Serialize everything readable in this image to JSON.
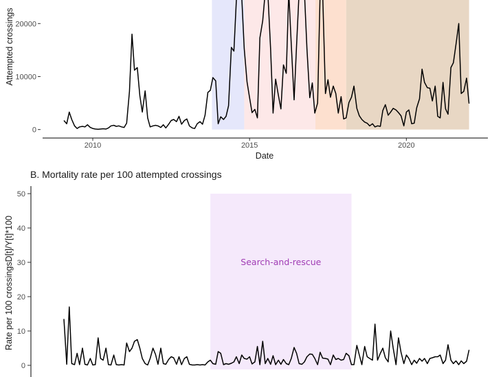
{
  "chart_data": [
    {
      "type": "line",
      "title": "",
      "xlabel": "Date",
      "ylabel": "Attempted crossings",
      "xlim": [
        2008.4,
        2022.6
      ],
      "ylim": [
        -1600,
        26000
      ],
      "x_ticks": [
        2010,
        2015,
        2020
      ],
      "x_tick_labels": [
        "2010",
        "2015",
        "2020"
      ],
      "y_ticks": [
        0,
        10000,
        20000
      ],
      "y_tick_labels": [
        "0",
        "10000",
        "20000"
      ],
      "grid": false,
      "bands": [
        {
          "from": 2013.8,
          "to": 2014.83,
          "color": "#e5e7fb"
        },
        {
          "from": 2014.83,
          "to": 2017.1,
          "color": "#fde8e8"
        },
        {
          "from": 2017.1,
          "to": 2018.08,
          "color": "#fde0cf"
        },
        {
          "from": 2018.08,
          "to": 2022.0,
          "color": "#e8d7c4"
        }
      ],
      "series": [
        {
          "name": "",
          "color": "#000000",
          "x": [
            2009.08,
            2009.17,
            2009.25,
            2009.33,
            2009.42,
            2009.5,
            2009.58,
            2009.67,
            2009.75,
            2009.83,
            2009.92,
            2010.0,
            2010.08,
            2010.17,
            2010.25,
            2010.33,
            2010.42,
            2010.5,
            2010.58,
            2010.67,
            2010.75,
            2010.83,
            2010.92,
            2011.0,
            2011.08,
            2011.17,
            2011.25,
            2011.33,
            2011.42,
            2011.5,
            2011.58,
            2011.67,
            2011.75,
            2011.83,
            2011.92,
            2012.0,
            2012.08,
            2012.17,
            2012.25,
            2012.33,
            2012.42,
            2012.5,
            2012.58,
            2012.67,
            2012.75,
            2012.83,
            2012.92,
            2013.0,
            2013.08,
            2013.17,
            2013.25,
            2013.33,
            2013.42,
            2013.5,
            2013.58,
            2013.67,
            2013.75,
            2013.83,
            2013.92,
            2014.0,
            2014.08,
            2014.17,
            2014.25,
            2014.33,
            2014.42,
            2014.5,
            2014.58,
            2014.67,
            2014.75,
            2014.83,
            2014.92,
            2015.0,
            2015.08,
            2015.17,
            2015.25,
            2015.33,
            2015.42,
            2015.5,
            2015.58,
            2015.67,
            2015.75,
            2015.83,
            2015.92,
            2016.0,
            2016.08,
            2016.17,
            2016.25,
            2016.33,
            2016.42,
            2016.5,
            2016.58,
            2016.67,
            2016.75,
            2016.83,
            2016.92,
            2017.0,
            2017.08,
            2017.17,
            2017.25,
            2017.33,
            2017.42,
            2017.5,
            2017.58,
            2017.67,
            2017.75,
            2017.83,
            2017.92,
            2018.0,
            2018.08,
            2018.17,
            2018.25,
            2018.33,
            2018.42,
            2018.5,
            2018.58,
            2018.67,
            2018.75,
            2018.83,
            2018.92,
            2019.0,
            2019.08,
            2019.17,
            2019.25,
            2019.33,
            2019.42,
            2019.5,
            2019.58,
            2019.67,
            2019.75,
            2019.83,
            2019.92,
            2020.0,
            2020.08,
            2020.17,
            2020.25,
            2020.33,
            2020.42,
            2020.5,
            2020.58,
            2020.67,
            2020.75,
            2020.83,
            2020.92,
            2021.0,
            2021.08,
            2021.17,
            2021.25,
            2021.33,
            2021.42,
            2021.5,
            2021.58,
            2021.67,
            2021.75,
            2021.83,
            2021.92,
            2022.0
          ],
          "y": [
            1700,
            1100,
            3300,
            1900,
            700,
            200,
            500,
            600,
            500,
            900,
            400,
            200,
            100,
            50,
            100,
            150,
            100,
            300,
            700,
            800,
            600,
            700,
            500,
            400,
            1200,
            7200,
            18000,
            11200,
            11700,
            6400,
            3300,
            7300,
            2200,
            500,
            700,
            800,
            700,
            400,
            900,
            300,
            1000,
            1700,
            1900,
            1500,
            2500,
            1000,
            1700,
            2000,
            700,
            300,
            200,
            1100,
            1500,
            1000,
            2700,
            7000,
            7400,
            9800,
            9200,
            1100,
            2400,
            1900,
            2500,
            4500,
            15500,
            14800,
            24500,
            26000,
            25000,
            15300,
            9000,
            6000,
            3200,
            3800,
            2200,
            17300,
            20500,
            26000,
            26000,
            15200,
            3100,
            9500,
            6400,
            3900,
            12200,
            10600,
            26000,
            16000,
            5600,
            15900,
            26000,
            26000,
            26000,
            15200,
            6000,
            8800,
            3100,
            5000,
            26000,
            26000,
            6800,
            9400,
            6100,
            8200,
            6800,
            3100,
            6200,
            2000,
            2200,
            5100,
            6100,
            8200,
            4000,
            2600,
            1900,
            1400,
            1200,
            700,
            1100,
            500,
            700,
            600,
            3600,
            4700,
            2700,
            3300,
            4000,
            3700,
            3200,
            2600,
            700,
            3300,
            3700,
            1100,
            1200,
            4100,
            5800,
            11400,
            8900,
            7900,
            7800,
            5400,
            8200,
            2500,
            2200,
            8900,
            3900,
            2900,
            11700,
            12600,
            16000,
            20000,
            6800,
            7200,
            9700,
            4900
          ]
        }
      ]
    },
    {
      "type": "line",
      "title": "B. Mortality rate per 100 attempted crossings",
      "xlabel": "",
      "ylabel": "Rate per 100 crossingsD[t]/Y[t]*100",
      "xlim": [
        2008.4,
        2022.6
      ],
      "ylim": [
        -1.5,
        52
      ],
      "y_ticks": [
        0,
        10,
        20,
        30,
        40,
        50
      ],
      "y_tick_labels": [
        "0",
        "10",
        "20",
        "30",
        "40",
        "50"
      ],
      "grid": false,
      "bands": [
        {
          "from": 2013.75,
          "to": 2018.25,
          "color": "#f5e9fb",
          "label": "Search-and-rescue"
        }
      ],
      "series": [
        {
          "name": "",
          "color": "#000000",
          "x": [
            2009.08,
            2009.17,
            2009.25,
            2009.33,
            2009.42,
            2009.5,
            2009.58,
            2009.67,
            2009.75,
            2009.83,
            2009.92,
            2010.0,
            2010.08,
            2010.17,
            2010.25,
            2010.33,
            2010.42,
            2010.5,
            2010.58,
            2010.67,
            2010.75,
            2010.83,
            2010.92,
            2011.0,
            2011.08,
            2011.17,
            2011.25,
            2011.33,
            2011.42,
            2011.5,
            2011.58,
            2011.67,
            2011.75,
            2011.83,
            2011.92,
            2012.0,
            2012.08,
            2012.17,
            2012.25,
            2012.33,
            2012.42,
            2012.5,
            2012.58,
            2012.67,
            2012.75,
            2012.83,
            2012.92,
            2013.0,
            2013.08,
            2013.17,
            2013.25,
            2013.33,
            2013.42,
            2013.5,
            2013.58,
            2013.67,
            2013.75,
            2013.83,
            2013.92,
            2014.0,
            2014.08,
            2014.17,
            2014.25,
            2014.33,
            2014.42,
            2014.5,
            2014.58,
            2014.67,
            2014.75,
            2014.83,
            2014.92,
            2015.0,
            2015.08,
            2015.17,
            2015.25,
            2015.33,
            2015.42,
            2015.5,
            2015.58,
            2015.67,
            2015.75,
            2015.83,
            2015.92,
            2016.0,
            2016.08,
            2016.17,
            2016.25,
            2016.33,
            2016.42,
            2016.5,
            2016.58,
            2016.67,
            2016.75,
            2016.83,
            2016.92,
            2017.0,
            2017.08,
            2017.17,
            2017.25,
            2017.33,
            2017.42,
            2017.5,
            2017.58,
            2017.67,
            2017.75,
            2017.83,
            2017.92,
            2018.0,
            2018.08,
            2018.17,
            2018.25,
            2018.33,
            2018.42,
            2018.5,
            2018.58,
            2018.67,
            2018.75,
            2018.83,
            2018.92,
            2019.0,
            2019.08,
            2019.17,
            2019.25,
            2019.33,
            2019.42,
            2019.5,
            2019.58,
            2019.67,
            2019.75,
            2019.83,
            2019.92,
            2020.0,
            2020.08,
            2020.17,
            2020.25,
            2020.33,
            2020.42,
            2020.5,
            2020.58,
            2020.67,
            2020.75,
            2020.83,
            2020.92,
            2021.0,
            2021.08,
            2021.17,
            2021.25,
            2021.33,
            2021.42,
            2021.5,
            2021.58,
            2021.67,
            2021.75,
            2021.83,
            2021.92,
            2022.0
          ],
          "y": [
            13.5,
            0.3,
            17,
            0.5,
            0.2,
            3.5,
            0.2,
            5,
            0.3,
            0.1,
            2,
            0.1,
            0.2,
            8,
            2,
            1.5,
            5,
            0.2,
            0.1,
            3,
            0.2,
            0.1,
            0.2,
            0.1,
            6.5,
            4,
            5,
            7,
            7.5,
            5,
            2,
            0.5,
            0.1,
            2,
            5,
            3.2,
            0.3,
            5,
            0.5,
            0.3,
            1.7,
            2.5,
            2.2,
            0.3,
            2.5,
            0.2,
            2,
            2.5,
            0.3,
            0.1,
            0.1,
            0.2,
            0.1,
            0.2,
            0.1,
            1,
            1.5,
            0.5,
            0.3,
            4,
            3.5,
            0.2,
            0.5,
            0.3,
            0.6,
            1,
            2.5,
            0.5,
            3,
            2,
            1.8,
            2.5,
            0.4,
            1,
            5.5,
            0.2,
            7,
            0.5,
            2,
            0.3,
            2.8,
            0.2,
            1.5,
            0.3,
            1.7,
            0.5,
            0.2,
            2,
            5.2,
            3.5,
            0.5,
            0.3,
            1,
            2.5,
            3.3,
            3.2,
            2,
            0.2,
            3.8,
            2.1,
            2,
            1.8,
            0.2,
            3,
            1.7,
            2,
            1.5,
            1.7,
            3.5,
            2.8,
            0.2,
            0.2,
            5.8,
            3,
            0.2,
            5.5,
            2.5,
            2,
            1.5,
            12,
            1.5,
            3.5,
            5,
            2.2,
            1,
            10,
            5,
            0.2,
            8,
            3.8,
            0.5,
            3,
            2,
            0.2,
            1.5,
            0.6,
            2,
            1.2,
            2,
            0.5,
            2,
            2.2,
            2.5,
            2.5,
            3,
            0.5,
            1.5,
            6,
            1.5,
            0.5,
            1.3,
            0.2,
            1.3,
            0.5,
            1.2,
            4.5
          ]
        }
      ]
    }
  ]
}
